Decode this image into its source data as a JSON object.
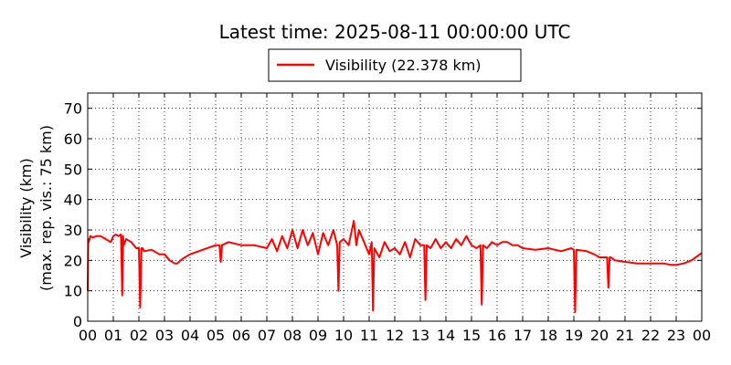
{
  "chart_data": {
    "type": "line",
    "title": "Latest time: 2025-08-11 00:00:00 UTC",
    "ylabel_line1": "Visibility (km)",
    "ylabel_line2": "(max. rep. vis.: 75 km)",
    "xlim": [
      0,
      24
    ],
    "ylim": [
      0,
      75
    ],
    "grid": true,
    "legend_placement": "top-center",
    "x_tick_labels": [
      "00",
      "01",
      "02",
      "03",
      "04",
      "05",
      "06",
      "07",
      "08",
      "09",
      "10",
      "11",
      "12",
      "13",
      "14",
      "15",
      "16",
      "17",
      "18",
      "19",
      "20",
      "21",
      "22",
      "23",
      "00"
    ],
    "y_ticks": [
      0,
      10,
      20,
      30,
      40,
      50,
      60,
      70
    ],
    "series": [
      {
        "name": "Visibility (22.378 km)",
        "color": "#ff0000",
        "x": [
          0.0,
          0.02,
          0.04,
          0.1,
          0.2,
          0.35,
          0.5,
          0.7,
          0.9,
          1.0,
          1.1,
          1.2,
          1.3,
          1.35,
          1.38,
          1.41,
          1.5,
          1.7,
          1.9,
          2.0,
          2.05,
          2.1,
          2.15,
          2.2,
          2.5,
          2.8,
          3.0,
          3.2,
          3.4,
          3.5,
          3.7,
          4.0,
          4.5,
          5.0,
          5.15,
          5.2,
          5.25,
          5.5,
          6.0,
          6.5,
          7.0,
          7.2,
          7.4,
          7.6,
          7.8,
          8.0,
          8.2,
          8.4,
          8.6,
          8.8,
          9.0,
          9.2,
          9.4,
          9.6,
          9.75,
          9.8,
          9.85,
          10.0,
          10.2,
          10.4,
          10.5,
          10.6,
          10.8,
          11.0,
          11.1,
          11.15,
          11.2,
          11.4,
          11.6,
          11.8,
          12.0,
          12.2,
          12.4,
          12.6,
          12.8,
          13.0,
          13.15,
          13.2,
          13.25,
          13.4,
          13.6,
          13.8,
          14.0,
          14.2,
          14.4,
          14.6,
          14.8,
          15.0,
          15.2,
          15.35,
          15.4,
          15.45,
          15.6,
          15.8,
          16.0,
          16.2,
          16.4,
          16.6,
          16.8,
          17.0,
          17.5,
          18.0,
          18.5,
          18.9,
          19.0,
          19.05,
          19.1,
          19.5,
          19.8,
          20.0,
          20.3,
          20.35,
          20.4,
          20.45,
          20.6,
          21.0,
          21.5,
          22.0,
          22.5,
          22.8,
          23.0,
          23.3,
          23.6,
          24.0
        ],
        "y": [
          10,
          27,
          26,
          28,
          27.5,
          28,
          28,
          27,
          26,
          28,
          28.5,
          28,
          28.5,
          8.5,
          28,
          25,
          27,
          26,
          24,
          24,
          4.5,
          24,
          24,
          23,
          23.5,
          22,
          22,
          20,
          19,
          19,
          20.5,
          22,
          23.5,
          25,
          25,
          19.5,
          25,
          26,
          25,
          25,
          24,
          27,
          23,
          28,
          24,
          30,
          24,
          30,
          25,
          29,
          22,
          29,
          25,
          30,
          25,
          10,
          26,
          27,
          25,
          33,
          25,
          30,
          26,
          22,
          26,
          3.5,
          24,
          21,
          26,
          23,
          24,
          22,
          26,
          21,
          27,
          25,
          25,
          7,
          25,
          24,
          27,
          24,
          26,
          24,
          27,
          25,
          28,
          25,
          24,
          25,
          5.5,
          25,
          24,
          26,
          25,
          26,
          26,
          25,
          25,
          24,
          23.5,
          24,
          23,
          24,
          23.5,
          3,
          23.5,
          23,
          22,
          21,
          21,
          11,
          21,
          21,
          20,
          19.5,
          19,
          19,
          19,
          18.5,
          18.5,
          19,
          20,
          22.4
        ]
      }
    ]
  }
}
